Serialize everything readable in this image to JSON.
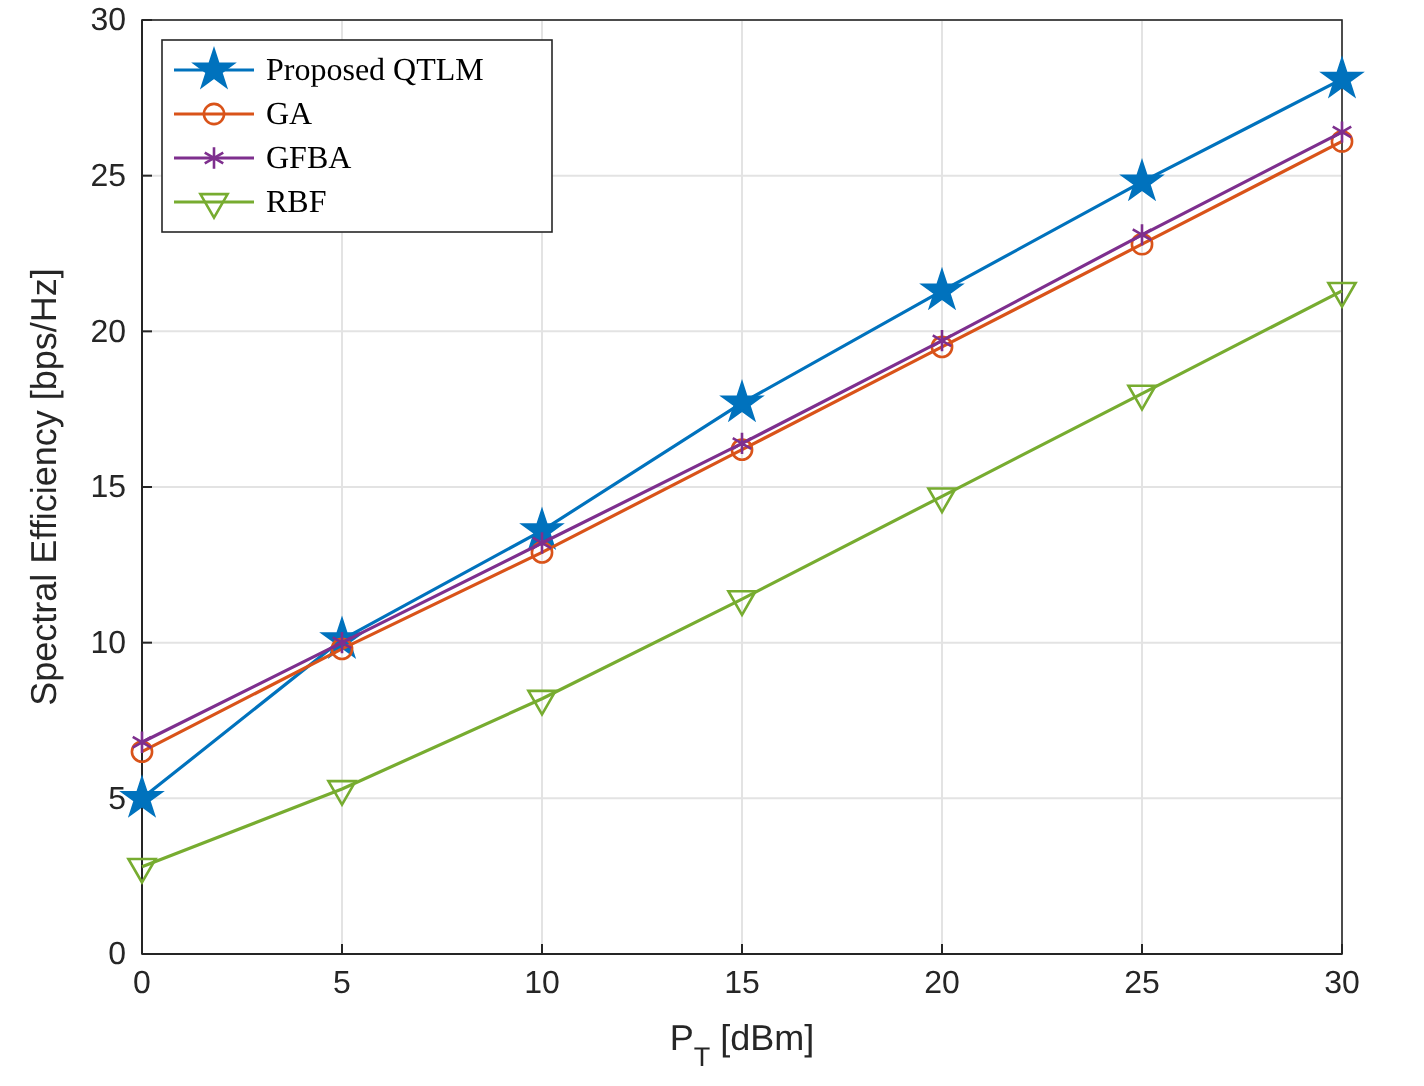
{
  "chart_data": {
    "type": "line",
    "xlabel": "P$_{T}$ [dBm]",
    "ylabel": "Spectral Efficiency [bps/Hz]",
    "x": [
      0,
      5,
      10,
      15,
      20,
      25,
      30
    ],
    "xlim": [
      0,
      30
    ],
    "xticks": [
      0,
      5,
      10,
      15,
      20,
      25,
      30
    ],
    "ylim": [
      0,
      30
    ],
    "yticks": [
      0,
      5,
      10,
      15,
      20,
      25,
      30
    ],
    "grid": true,
    "legend": "top left",
    "series": [
      {
        "name": "Proposed QTLM",
        "color": "#0072bd",
        "marker": "star",
        "values": [
          5.0,
          10.1,
          13.6,
          17.7,
          21.3,
          24.8,
          28.1
        ]
      },
      {
        "name": "GA",
        "color": "#d95319",
        "marker": "circle",
        "values": [
          6.5,
          9.8,
          12.9,
          16.2,
          19.5,
          22.8,
          26.1
        ]
      },
      {
        "name": "GFBA",
        "color": "#7e2f8e",
        "marker": "cross",
        "values": [
          6.8,
          10.0,
          13.2,
          16.4,
          19.7,
          23.1,
          26.4
        ]
      },
      {
        "name": "RBF",
        "color": "#77ac30",
        "marker": "triangle",
        "values": [
          2.8,
          5.3,
          8.2,
          11.4,
          14.7,
          18.0,
          21.3
        ]
      }
    ]
  }
}
